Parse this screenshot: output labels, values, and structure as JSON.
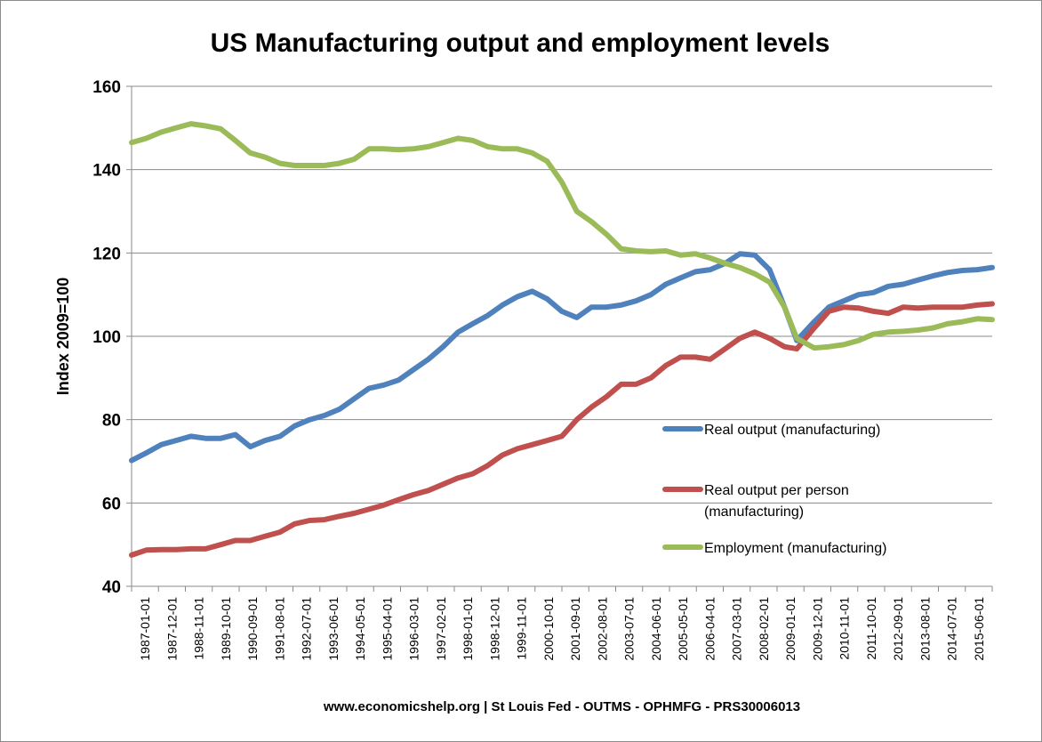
{
  "chart_data": {
    "type": "line",
    "title": "US Manufacturing output and employment levels",
    "ylabel": "Index 2009=100",
    "xlabel": "",
    "ylim": [
      40,
      160
    ],
    "yticks": [
      40,
      60,
      80,
      100,
      120,
      140,
      160
    ],
    "grid": true,
    "legend_position": "right-middle",
    "source": "www.economicshelp.org | St Louis Fed - OUTMS - OPHMFG - PRS30006013",
    "xtick_labels": [
      "1987-01-01",
      "1987-12-01",
      "1988-11-01",
      "1989-10-01",
      "1990-09-01",
      "1991-08-01",
      "1992-07-01",
      "1993-06-01",
      "1994-05-01",
      "1995-04-01",
      "1996-03-01",
      "1997-02-01",
      "1998-01-01",
      "1998-12-01",
      "1999-11-01",
      "2000-10-01",
      "2001-09-01",
      "2002-08-01",
      "2003-07-01",
      "2004-06-01",
      "2005-05-01",
      "2006-04-01",
      "2007-03-01",
      "2008-02-01",
      "2009-01-01",
      "2009-12-01",
      "2010-11-01",
      "2011-10-01",
      "2012-09-01",
      "2013-08-01",
      "2014-07-01",
      "2015-06-01"
    ],
    "x_first": "1987-01-01",
    "x_last": "2016-01-01",
    "series": [
      {
        "name": "Real output (manufacturing)",
        "color": "#4F81BD",
        "points": [
          [
            "1987-01-01",
            70.2
          ],
          [
            "1987-07-01",
            72.0
          ],
          [
            "1988-01-01",
            74.0
          ],
          [
            "1988-07-01",
            75.0
          ],
          [
            "1989-01-01",
            76.0
          ],
          [
            "1989-07-01",
            75.5
          ],
          [
            "1990-01-01",
            75.5
          ],
          [
            "1990-07-01",
            76.4
          ],
          [
            "1991-01-01",
            73.5
          ],
          [
            "1991-07-01",
            75.0
          ],
          [
            "1992-01-01",
            76.0
          ],
          [
            "1992-07-01",
            78.5
          ],
          [
            "1993-01-01",
            80.0
          ],
          [
            "1993-07-01",
            81.0
          ],
          [
            "1994-01-01",
            82.5
          ],
          [
            "1994-07-01",
            85.0
          ],
          [
            "1995-01-01",
            87.5
          ],
          [
            "1995-07-01",
            88.3
          ],
          [
            "1996-01-01",
            89.5
          ],
          [
            "1996-07-01",
            92.0
          ],
          [
            "1997-01-01",
            94.5
          ],
          [
            "1997-07-01",
            97.5
          ],
          [
            "1998-01-01",
            101.0
          ],
          [
            "1998-07-01",
            103.0
          ],
          [
            "1999-01-01",
            105.0
          ],
          [
            "1999-07-01",
            107.5
          ],
          [
            "2000-01-01",
            109.5
          ],
          [
            "2000-07-01",
            110.8
          ],
          [
            "2001-01-01",
            109.0
          ],
          [
            "2001-07-01",
            106.0
          ],
          [
            "2002-01-01",
            104.5
          ],
          [
            "2002-07-01",
            107.0
          ],
          [
            "2003-01-01",
            107.0
          ],
          [
            "2003-07-01",
            107.5
          ],
          [
            "2004-01-01",
            108.5
          ],
          [
            "2004-07-01",
            110.0
          ],
          [
            "2005-01-01",
            112.5
          ],
          [
            "2005-07-01",
            114.0
          ],
          [
            "2006-01-01",
            115.5
          ],
          [
            "2006-07-01",
            116.0
          ],
          [
            "2007-01-01",
            117.5
          ],
          [
            "2007-07-01",
            119.8
          ],
          [
            "2008-01-01",
            119.5
          ],
          [
            "2008-07-01",
            116.0
          ],
          [
            "2009-01-01",
            107.0
          ],
          [
            "2009-06-01",
            99.0
          ],
          [
            "2010-01-01",
            103.5
          ],
          [
            "2010-07-01",
            107.0
          ],
          [
            "2011-01-01",
            108.5
          ],
          [
            "2011-07-01",
            110.0
          ],
          [
            "2012-01-01",
            110.5
          ],
          [
            "2012-07-01",
            112.0
          ],
          [
            "2013-01-01",
            112.5
          ],
          [
            "2013-07-01",
            113.5
          ],
          [
            "2014-01-01",
            114.5
          ],
          [
            "2014-07-01",
            115.3
          ],
          [
            "2015-01-01",
            115.8
          ],
          [
            "2015-07-01",
            116.0
          ],
          [
            "2016-01-01",
            116.5
          ]
        ]
      },
      {
        "name": "Real output per person (manufacturing)",
        "color": "#C0504D",
        "points": [
          [
            "1987-01-01",
            47.5
          ],
          [
            "1987-07-01",
            48.7
          ],
          [
            "1988-01-01",
            48.8
          ],
          [
            "1988-07-01",
            48.8
          ],
          [
            "1989-01-01",
            49.0
          ],
          [
            "1989-07-01",
            49.0
          ],
          [
            "1990-01-01",
            50.0
          ],
          [
            "1990-07-01",
            51.0
          ],
          [
            "1991-01-01",
            51.0
          ],
          [
            "1991-07-01",
            52.0
          ],
          [
            "1992-01-01",
            53.0
          ],
          [
            "1992-07-01",
            55.0
          ],
          [
            "1993-01-01",
            55.8
          ],
          [
            "1993-07-01",
            56.0
          ],
          [
            "1994-01-01",
            56.8
          ],
          [
            "1994-07-01",
            57.5
          ],
          [
            "1995-01-01",
            58.5
          ],
          [
            "1995-07-01",
            59.5
          ],
          [
            "1996-01-01",
            60.8
          ],
          [
            "1996-07-01",
            62.0
          ],
          [
            "1997-01-01",
            63.0
          ],
          [
            "1997-07-01",
            64.5
          ],
          [
            "1998-01-01",
            66.0
          ],
          [
            "1998-07-01",
            67.0
          ],
          [
            "1999-01-01",
            69.0
          ],
          [
            "1999-07-01",
            71.5
          ],
          [
            "2000-01-01",
            73.0
          ],
          [
            "2000-07-01",
            74.0
          ],
          [
            "2001-01-01",
            75.0
          ],
          [
            "2001-07-01",
            76.0
          ],
          [
            "2002-01-01",
            80.0
          ],
          [
            "2002-07-01",
            83.0
          ],
          [
            "2003-01-01",
            85.5
          ],
          [
            "2003-07-01",
            88.5
          ],
          [
            "2004-01-01",
            88.5
          ],
          [
            "2004-07-01",
            90.0
          ],
          [
            "2005-01-01",
            93.0
          ],
          [
            "2005-07-01",
            95.0
          ],
          [
            "2006-01-01",
            95.0
          ],
          [
            "2006-07-01",
            94.5
          ],
          [
            "2007-01-01",
            97.0
          ],
          [
            "2007-07-01",
            99.5
          ],
          [
            "2008-01-01",
            101.0
          ],
          [
            "2008-07-01",
            99.5
          ],
          [
            "2009-01-01",
            97.5
          ],
          [
            "2009-06-01",
            97.0
          ],
          [
            "2010-01-01",
            102.0
          ],
          [
            "2010-07-01",
            106.0
          ],
          [
            "2011-01-01",
            107.0
          ],
          [
            "2011-07-01",
            106.8
          ],
          [
            "2012-01-01",
            106.0
          ],
          [
            "2012-07-01",
            105.5
          ],
          [
            "2013-01-01",
            107.0
          ],
          [
            "2013-07-01",
            106.8
          ],
          [
            "2014-01-01",
            107.0
          ],
          [
            "2014-07-01",
            107.0
          ],
          [
            "2015-01-01",
            107.0
          ],
          [
            "2015-07-01",
            107.5
          ],
          [
            "2016-01-01",
            107.8
          ]
        ]
      },
      {
        "name": "Employment (manufacturing)",
        "color": "#9BBB59",
        "points": [
          [
            "1987-01-01",
            146.5
          ],
          [
            "1987-07-01",
            147.5
          ],
          [
            "1988-01-01",
            149.0
          ],
          [
            "1988-07-01",
            150.0
          ],
          [
            "1989-01-01",
            151.0
          ],
          [
            "1989-07-01",
            150.5
          ],
          [
            "1990-01-01",
            149.8
          ],
          [
            "1990-07-01",
            147.0
          ],
          [
            "1991-01-01",
            144.0
          ],
          [
            "1991-07-01",
            143.0
          ],
          [
            "1992-01-01",
            141.5
          ],
          [
            "1992-07-01",
            141.0
          ],
          [
            "1993-01-01",
            141.0
          ],
          [
            "1993-07-01",
            141.0
          ],
          [
            "1994-01-01",
            141.5
          ],
          [
            "1994-07-01",
            142.5
          ],
          [
            "1995-01-01",
            145.0
          ],
          [
            "1995-07-01",
            145.0
          ],
          [
            "1996-01-01",
            144.8
          ],
          [
            "1996-07-01",
            145.0
          ],
          [
            "1997-01-01",
            145.5
          ],
          [
            "1997-07-01",
            146.5
          ],
          [
            "1998-01-01",
            147.5
          ],
          [
            "1998-07-01",
            147.0
          ],
          [
            "1999-01-01",
            145.5
          ],
          [
            "1999-07-01",
            145.0
          ],
          [
            "2000-01-01",
            145.0
          ],
          [
            "2000-07-01",
            144.0
          ],
          [
            "2001-01-01",
            142.0
          ],
          [
            "2001-07-01",
            137.0
          ],
          [
            "2002-01-01",
            130.0
          ],
          [
            "2002-07-01",
            127.5
          ],
          [
            "2003-01-01",
            124.5
          ],
          [
            "2003-07-01",
            121.0
          ],
          [
            "2004-01-01",
            120.5
          ],
          [
            "2004-07-01",
            120.3
          ],
          [
            "2005-01-01",
            120.5
          ],
          [
            "2005-07-01",
            119.5
          ],
          [
            "2006-01-01",
            119.8
          ],
          [
            "2006-07-01",
            118.8
          ],
          [
            "2007-01-01",
            117.5
          ],
          [
            "2007-07-01",
            116.5
          ],
          [
            "2008-01-01",
            115.0
          ],
          [
            "2008-07-01",
            113.0
          ],
          [
            "2009-01-01",
            107.0
          ],
          [
            "2009-06-01",
            99.5
          ],
          [
            "2010-01-01",
            97.2
          ],
          [
            "2010-07-01",
            97.5
          ],
          [
            "2011-01-01",
            98.0
          ],
          [
            "2011-07-01",
            99.0
          ],
          [
            "2012-01-01",
            100.5
          ],
          [
            "2012-07-01",
            101.0
          ],
          [
            "2013-01-01",
            101.2
          ],
          [
            "2013-07-01",
            101.5
          ],
          [
            "2014-01-01",
            102.0
          ],
          [
            "2014-07-01",
            103.0
          ],
          [
            "2015-01-01",
            103.5
          ],
          [
            "2015-07-01",
            104.2
          ],
          [
            "2016-01-01",
            104.0
          ]
        ]
      }
    ]
  }
}
